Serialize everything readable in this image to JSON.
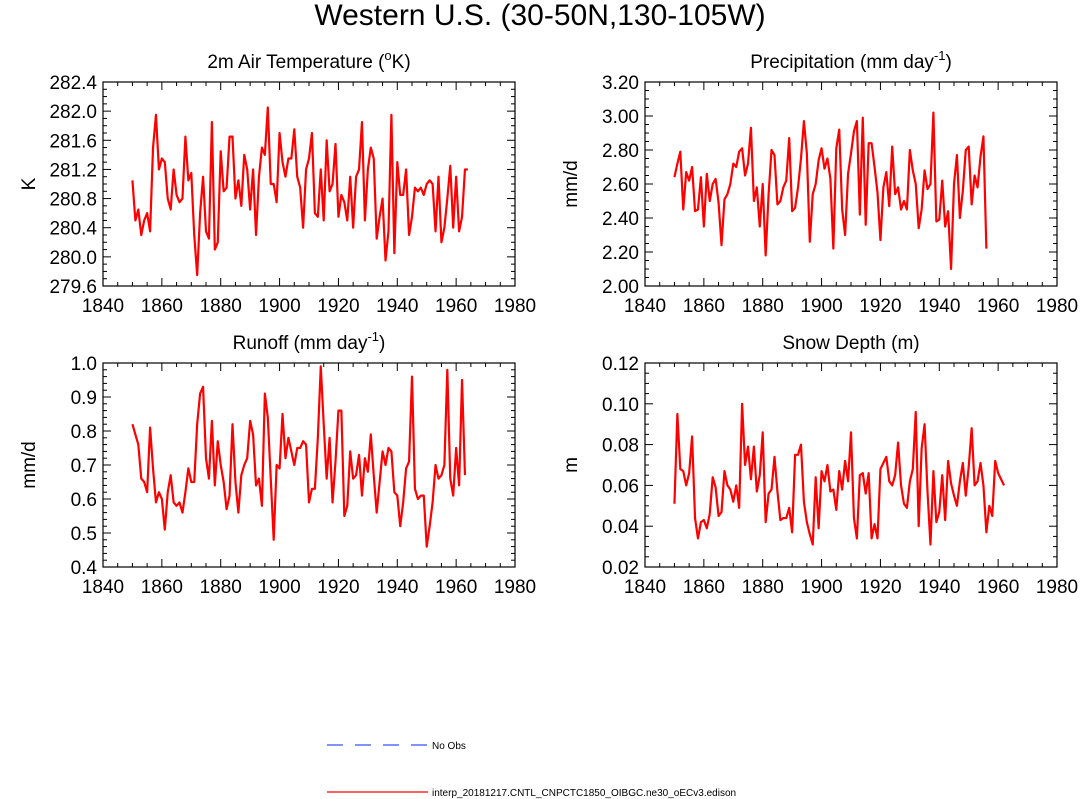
{
  "figure": {
    "title": "Western U.S. (30-50N,130-105W)",
    "colors": {
      "model": "#ff0000",
      "obs": "#3355ff",
      "axis": "#000000"
    }
  },
  "legend": [
    {
      "label": "No Obs",
      "style": "dashed",
      "color": "#3355ff"
    },
    {
      "label": "interp_20181217.CNTL_CNPCTC1850_OIBGC.ne30_oECv3.edison",
      "style": "solid",
      "color": "#ff0000"
    }
  ],
  "chart_data": [
    {
      "type": "line",
      "title_main": "2m Air Temperature (",
      "title_sup": "o",
      "title_tail": "K)",
      "xlabel": "",
      "ylabel": "K",
      "xlim": [
        1840,
        1980
      ],
      "ylim": [
        279.6,
        282.4
      ],
      "xticks": [
        1840,
        1860,
        1880,
        1900,
        1920,
        1940,
        1960,
        1980
      ],
      "yticks": [
        "279.6",
        "280.0",
        "280.4",
        "280.8",
        "281.2",
        "281.6",
        "282.0",
        "282.4"
      ],
      "series": [
        {
          "name": "interp_20181217.CNTL_CNPCTC1850_OIBGC.ne30_oECv3.edison",
          "color": "#ff0000",
          "x_start": 1850,
          "values": [
            281.05,
            280.5,
            280.65,
            280.3,
            280.5,
            280.6,
            280.35,
            281.5,
            281.95,
            281.2,
            281.35,
            281.3,
            280.8,
            280.65,
            281.2,
            280.85,
            280.75,
            280.8,
            281.65,
            281.05,
            281.15,
            280.3,
            279.75,
            280.6,
            281.1,
            280.35,
            280.25,
            281.85,
            280.1,
            280.2,
            281.45,
            280.9,
            280.95,
            281.65,
            281.65,
            280.8,
            281.05,
            280.7,
            281.4,
            281.2,
            280.65,
            281.2,
            280.3,
            281.1,
            281.5,
            281.4,
            282.05,
            281.0,
            281.0,
            280.75,
            281.7,
            281.3,
            281.1,
            281.35,
            281.35,
            281.75,
            281.1,
            280.95,
            280.4,
            281.2,
            281.35,
            281.7,
            280.6,
            280.55,
            281.2,
            280.5,
            281.6,
            280.9,
            281.0,
            281.55,
            280.55,
            280.85,
            280.75,
            280.5,
            281.1,
            280.4,
            281.1,
            281.2,
            281.85,
            280.5,
            281.2,
            281.5,
            281.35,
            280.25,
            280.55,
            280.8,
            279.95,
            280.35,
            281.95,
            280.05,
            281.3,
            280.85,
            280.85,
            281.2,
            280.3,
            280.55,
            280.95,
            280.9,
            280.95,
            280.85,
            281.0,
            281.05,
            281.0,
            280.35,
            281.1,
            280.2,
            280.4,
            280.8,
            281.25,
            280.4,
            281.1,
            280.35,
            280.55,
            281.2,
            281.2
          ]
        }
      ]
    },
    {
      "type": "line",
      "title_main": "Precipitation (mm day",
      "title_sup": "-1",
      "title_tail": ")",
      "xlabel": "",
      "ylabel": "mm/d",
      "xlim": [
        1840,
        1980
      ],
      "ylim": [
        2.0,
        3.2
      ],
      "xticks": [
        1840,
        1860,
        1880,
        1900,
        1920,
        1940,
        1960,
        1980
      ],
      "yticks": [
        "2.00",
        "2.20",
        "2.40",
        "2.60",
        "2.80",
        "3.00",
        "3.20"
      ],
      "series": [
        {
          "name": "interp_20181217.CNTL_CNPCTC1850_OIBGC.ne30_oECv3.edison",
          "color": "#ff0000",
          "x_start": 1850,
          "values": [
            2.64,
            2.72,
            2.79,
            2.45,
            2.67,
            2.62,
            2.7,
            2.44,
            2.45,
            2.64,
            2.35,
            2.66,
            2.5,
            2.6,
            2.63,
            2.49,
            2.24,
            2.51,
            2.54,
            2.6,
            2.72,
            2.7,
            2.79,
            2.81,
            2.65,
            2.72,
            2.93,
            2.5,
            2.58,
            2.35,
            2.6,
            2.18,
            2.54,
            2.8,
            2.77,
            2.48,
            2.5,
            2.58,
            2.62,
            2.87,
            2.44,
            2.46,
            2.58,
            2.75,
            2.97,
            2.78,
            2.26,
            2.54,
            2.6,
            2.74,
            2.81,
            2.69,
            2.75,
            2.63,
            2.22,
            2.81,
            2.92,
            2.45,
            2.3,
            2.66,
            2.78,
            2.91,
            2.97,
            2.42,
            2.99,
            2.36,
            2.84,
            2.84,
            2.7,
            2.55,
            2.27,
            2.58,
            2.67,
            2.47,
            2.82,
            2.54,
            2.58,
            2.45,
            2.5,
            2.45,
            2.8,
            2.68,
            2.6,
            2.34,
            2.45,
            2.68,
            2.57,
            2.6,
            3.02,
            2.38,
            2.39,
            2.62,
            2.35,
            2.44,
            2.1,
            2.6,
            2.77,
            2.4,
            2.56,
            2.8,
            2.82,
            2.48,
            2.65,
            2.58,
            2.76,
            2.88,
            2.22
          ]
        }
      ]
    },
    {
      "type": "line",
      "title_main": "Runoff (mm day",
      "title_sup": "-1",
      "title_tail": ")",
      "xlabel": "",
      "ylabel": "mm/d",
      "xlim": [
        1840,
        1980
      ],
      "ylim": [
        0.4,
        1.0
      ],
      "xticks": [
        1840,
        1860,
        1880,
        1900,
        1920,
        1940,
        1960,
        1980
      ],
      "yticks": [
        "0.4",
        "0.5",
        "0.6",
        "0.7",
        "0.8",
        "0.9",
        "1.0"
      ],
      "series": [
        {
          "name": "interp_20181217.CNTL_CNPCTC1850_OIBGC.ne30_oECv3.edison",
          "color": "#ff0000",
          "x_start": 1850,
          "values": [
            0.82,
            0.79,
            0.76,
            0.66,
            0.65,
            0.62,
            0.81,
            0.69,
            0.59,
            0.62,
            0.6,
            0.51,
            0.62,
            0.67,
            0.59,
            0.58,
            0.59,
            0.56,
            0.62,
            0.69,
            0.65,
            0.65,
            0.82,
            0.91,
            0.93,
            0.72,
            0.66,
            0.83,
            0.64,
            0.77,
            0.7,
            0.65,
            0.57,
            0.61,
            0.82,
            0.65,
            0.56,
            0.67,
            0.7,
            0.72,
            0.83,
            0.79,
            0.64,
            0.66,
            0.58,
            0.91,
            0.84,
            0.66,
            0.48,
            0.7,
            0.69,
            0.85,
            0.72,
            0.78,
            0.74,
            0.7,
            0.75,
            0.75,
            0.77,
            0.76,
            0.59,
            0.63,
            0.63,
            0.78,
            0.99,
            0.82,
            0.66,
            0.78,
            0.59,
            0.71,
            0.86,
            0.86,
            0.55,
            0.58,
            0.74,
            0.66,
            0.67,
            0.73,
            0.61,
            0.72,
            0.68,
            0.79,
            0.67,
            0.56,
            0.65,
            0.74,
            0.7,
            0.75,
            0.74,
            0.62,
            0.61,
            0.52,
            0.59,
            0.69,
            0.71,
            0.96,
            0.63,
            0.6,
            0.61,
            0.61,
            0.46,
            0.52,
            0.59,
            0.7,
            0.66,
            0.67,
            0.7,
            0.98,
            0.66,
            0.61,
            0.75,
            0.64,
            0.95,
            0.67
          ]
        }
      ]
    },
    {
      "type": "line",
      "title_main": "Snow Depth (m)",
      "title_sup": "",
      "title_tail": "",
      "xlabel": "",
      "ylabel": "m",
      "xlim": [
        1840,
        1980
      ],
      "ylim": [
        0.02,
        0.12
      ],
      "xticks": [
        1840,
        1860,
        1880,
        1900,
        1920,
        1940,
        1960,
        1980
      ],
      "yticks": [
        "0.02",
        "0.04",
        "0.06",
        "0.08",
        "0.10",
        "0.12"
      ],
      "series": [
        {
          "name": "interp_20181217.CNTL_CNPCTC1850_OIBGC.ne30_oECv3.edison",
          "color": "#ff0000",
          "x_start": 1850,
          "values": [
            0.051,
            0.095,
            0.068,
            0.067,
            0.06,
            0.066,
            0.084,
            0.044,
            0.034,
            0.042,
            0.043,
            0.039,
            0.046,
            0.064,
            0.059,
            0.045,
            0.047,
            0.067,
            0.06,
            0.058,
            0.052,
            0.06,
            0.049,
            0.1,
            0.07,
            0.079,
            0.063,
            0.079,
            0.057,
            0.065,
            0.086,
            0.042,
            0.056,
            0.058,
            0.074,
            0.057,
            0.043,
            0.044,
            0.044,
            0.049,
            0.037,
            0.075,
            0.075,
            0.08,
            0.052,
            0.042,
            0.036,
            0.031,
            0.064,
            0.039,
            0.067,
            0.062,
            0.07,
            0.057,
            0.058,
            0.048,
            0.067,
            0.058,
            0.072,
            0.062,
            0.086,
            0.044,
            0.034,
            0.065,
            0.066,
            0.056,
            0.066,
            0.034,
            0.041,
            0.034,
            0.068,
            0.071,
            0.074,
            0.062,
            0.06,
            0.065,
            0.081,
            0.06,
            0.051,
            0.049,
            0.062,
            0.068,
            0.096,
            0.04,
            0.078,
            0.09,
            0.057,
            0.031,
            0.067,
            0.042,
            0.047,
            0.065,
            0.043,
            0.072,
            0.061,
            0.055,
            0.05,
            0.062,
            0.071,
            0.055,
            0.069,
            0.088,
            0.06,
            0.062,
            0.071,
            0.06,
            0.037,
            0.05,
            0.045,
            0.072,
            0.066,
            0.063,
            0.06
          ]
        }
      ]
    }
  ]
}
